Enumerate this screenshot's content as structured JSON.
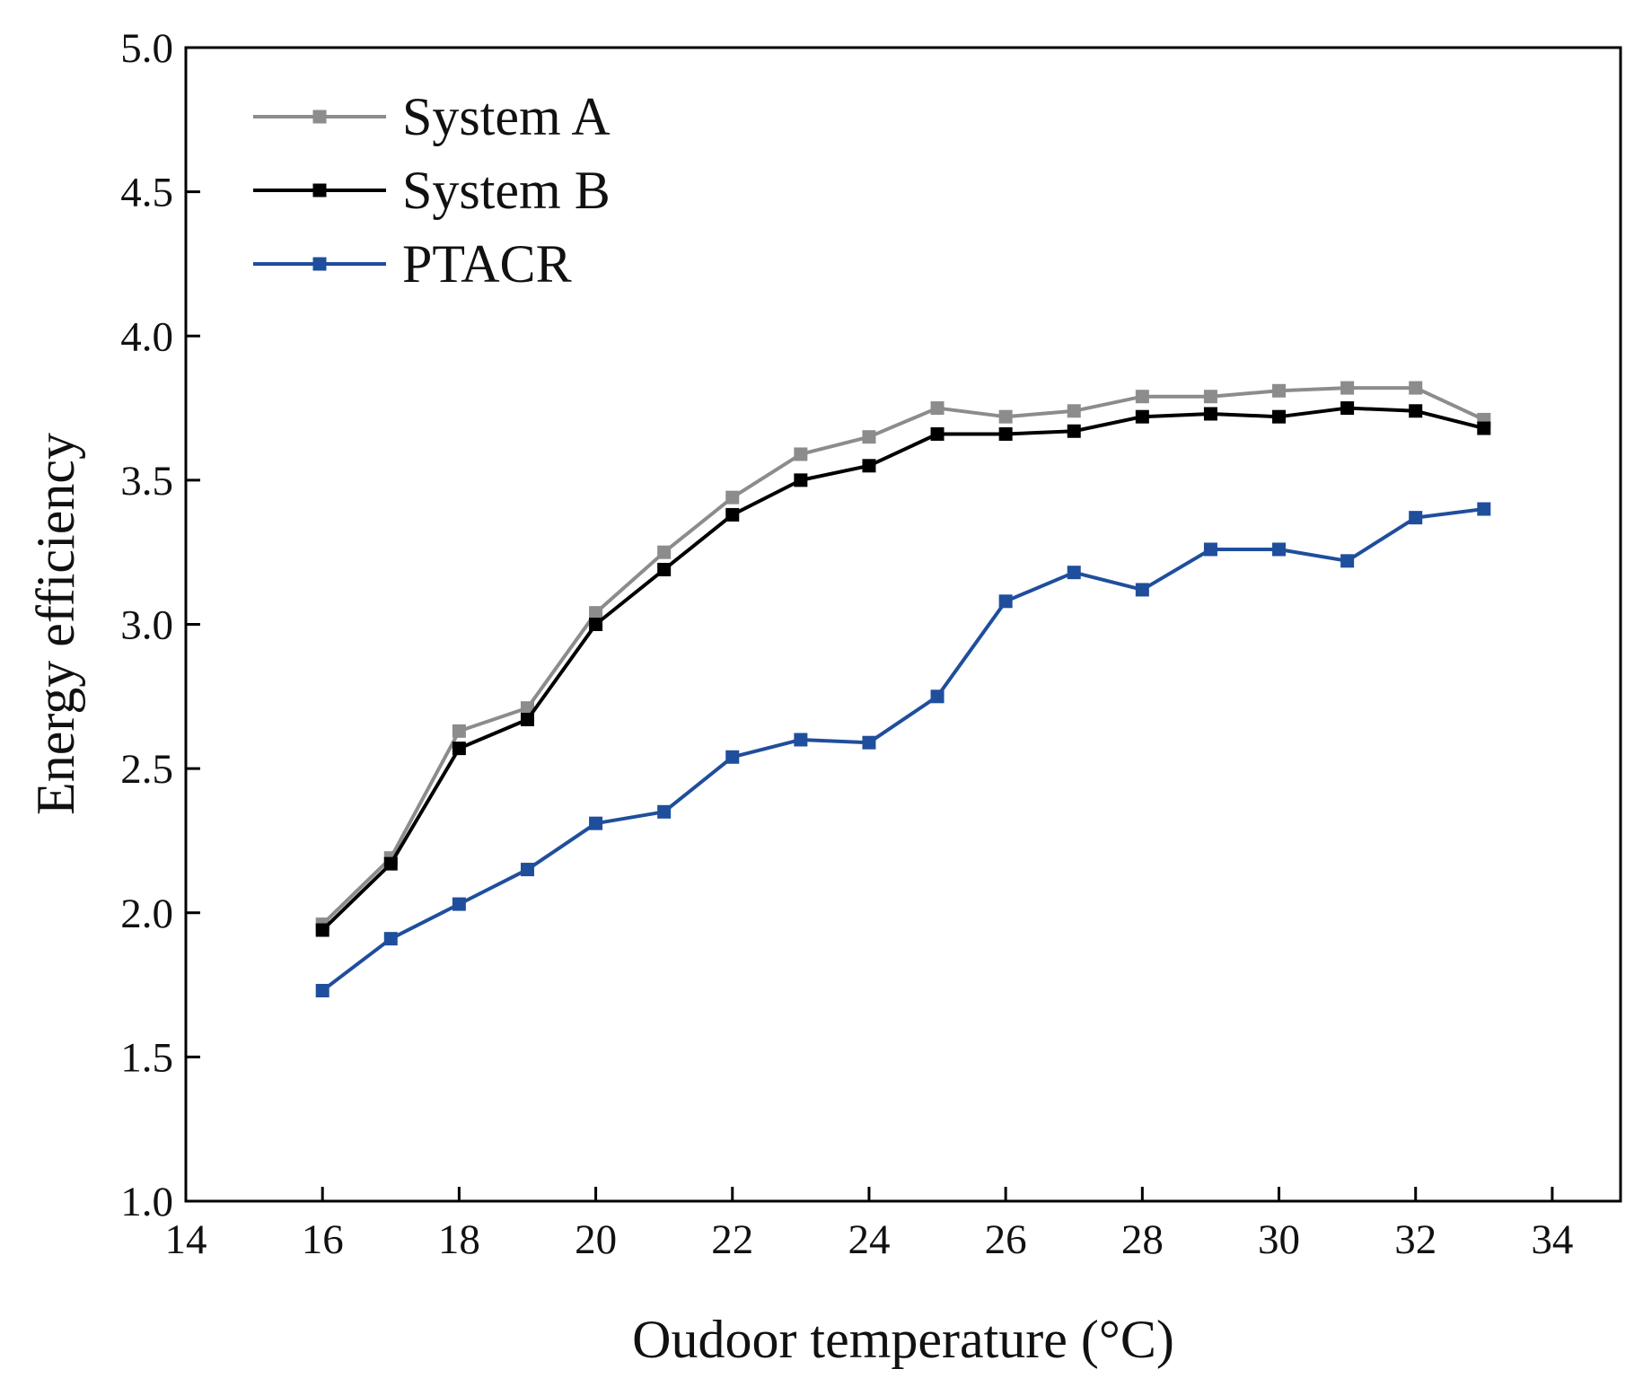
{
  "chart_data": {
    "type": "line",
    "title": "",
    "xlabel": "Oudoor temperature (°C)",
    "ylabel": "Energy efficiency",
    "xlim": [
      14,
      35
    ],
    "ylim": [
      1.0,
      5.0
    ],
    "xticks": [
      14,
      16,
      18,
      20,
      22,
      24,
      26,
      28,
      30,
      32,
      34
    ],
    "yticks": [
      1.0,
      1.5,
      2.0,
      2.5,
      3.0,
      3.5,
      4.0,
      4.5,
      5.0
    ],
    "xtick_labels": [
      "14",
      "16",
      "18",
      "20",
      "22",
      "24",
      "26",
      "28",
      "30",
      "32",
      "34"
    ],
    "ytick_labels": [
      "1.0",
      "1.5",
      "2.0",
      "2.5",
      "3.0",
      "3.5",
      "4.0",
      "4.5",
      "5.0"
    ],
    "grid": false,
    "legend_position": "top-left",
    "x": [
      16,
      17,
      18,
      19,
      20,
      21,
      22,
      23,
      24,
      25,
      26,
      27,
      28,
      29,
      30,
      31,
      32,
      33
    ],
    "series": [
      {
        "name": "System A",
        "color": "#8c8c8c",
        "values": [
          1.96,
          2.19,
          2.63,
          2.71,
          3.04,
          3.25,
          3.44,
          3.59,
          3.65,
          3.75,
          3.72,
          3.74,
          3.79,
          3.79,
          3.81,
          3.82,
          3.82,
          3.71
        ]
      },
      {
        "name": "System B",
        "color": "#000000",
        "values": [
          1.94,
          2.17,
          2.57,
          2.67,
          3.0,
          3.19,
          3.38,
          3.5,
          3.55,
          3.66,
          3.66,
          3.67,
          3.72,
          3.73,
          3.72,
          3.75,
          3.74,
          3.68
        ]
      },
      {
        "name": "PTACR",
        "color": "#1f4e9c",
        "values": [
          1.73,
          1.91,
          2.03,
          2.15,
          2.31,
          2.35,
          2.54,
          2.6,
          2.59,
          2.75,
          3.08,
          3.18,
          3.12,
          3.26,
          3.26,
          3.22,
          3.37,
          3.4
        ]
      }
    ]
  }
}
